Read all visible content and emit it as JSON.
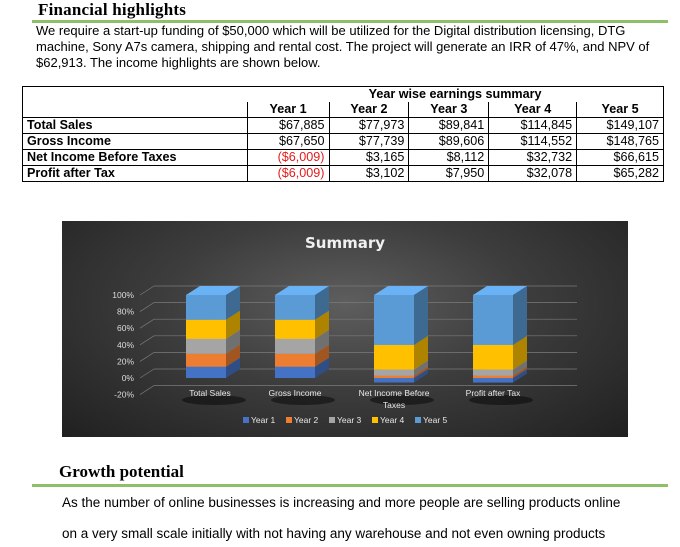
{
  "section1": {
    "title": "Financial highlights",
    "intro": "We require a start-up funding of $50,000 which will be utilized for the Digital distribution licensing, DTG machine, Sony A7s camera, shipping and rental cost. The project will generate an IRR of 47%, and NPV of $62,913. The income highlights are shown below."
  },
  "table": {
    "caption": "Year wise earnings summary",
    "years": [
      "Year 1",
      "Year 2",
      "Year 3",
      "Year 4",
      "Year 5"
    ],
    "rows": [
      {
        "label": "Total Sales",
        "values": [
          "$67,885",
          "$77,973",
          "$89,841",
          "$114,845",
          "$149,107"
        ],
        "negative": [
          false,
          false,
          false,
          false,
          false
        ]
      },
      {
        "label": "Gross Income",
        "values": [
          "$67,650",
          "$77,739",
          "$89,606",
          "$114,552",
          "$148,765"
        ],
        "negative": [
          false,
          false,
          false,
          false,
          false
        ]
      },
      {
        "label": "Net Income Before Taxes",
        "values": [
          "($6,009)",
          "$3,165",
          "$8,112",
          "$32,732",
          "$66,615"
        ],
        "negative": [
          true,
          false,
          false,
          false,
          false
        ]
      },
      {
        "label": "Profit after Tax",
        "values": [
          "($6,009)",
          "$3,102",
          "$7,950",
          "$32,078",
          "$65,282"
        ],
        "negative": [
          true,
          false,
          false,
          false,
          false
        ]
      }
    ]
  },
  "chart_data": {
    "type": "bar",
    "stacked": "100%",
    "title": "Summary",
    "categories": [
      "Total Sales",
      "Gross Income",
      "Net Income Before Taxes",
      "Profit after Tax"
    ],
    "yticks": [
      "100%",
      "80%",
      "60%",
      "40%",
      "20%",
      "0%",
      "-20%"
    ],
    "ylim": [
      -0.2,
      1.0
    ],
    "series": [
      {
        "name": "Year 1",
        "color": "#4472c4",
        "values": [
          67885,
          67650,
          -6009,
          -6009
        ]
      },
      {
        "name": "Year 2",
        "color": "#ed7d31",
        "values": [
          77973,
          77739,
          3165,
          3102
        ]
      },
      {
        "name": "Year 3",
        "color": "#a5a5a5",
        "values": [
          89841,
          89606,
          8112,
          7950
        ]
      },
      {
        "name": "Year 4",
        "color": "#ffc000",
        "values": [
          114845,
          114552,
          32732,
          32078
        ]
      },
      {
        "name": "Year 5",
        "color": "#5b9bd5",
        "values": [
          149107,
          148765,
          66615,
          65282
        ]
      }
    ],
    "legend_position": "bottom",
    "grid": true
  },
  "section2": {
    "title": "Growth potential",
    "lines": [
      "As the number of online businesses is increasing and more people are selling products online",
      "on a very small scale initially with not having any warehouse and not even owning products"
    ]
  }
}
